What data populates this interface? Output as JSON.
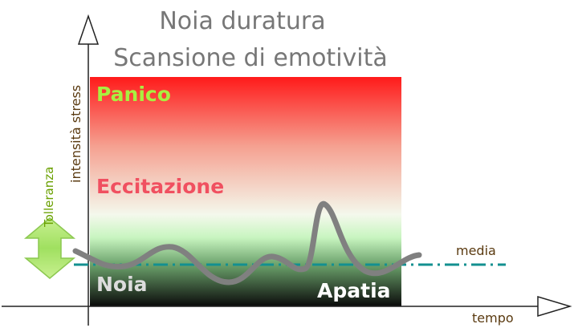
{
  "title": "Noia duratura",
  "subtitle": "Scansione di emotività",
  "zones": {
    "top": "Panico",
    "middle": "Eccitazione",
    "bottom_left": "Noia",
    "bottom_right": "Apatia"
  },
  "labels": {
    "average": "media",
    "x_axis": "tempo",
    "y_axis": "intensità stress",
    "tolerance": "Tolleranza"
  }
}
